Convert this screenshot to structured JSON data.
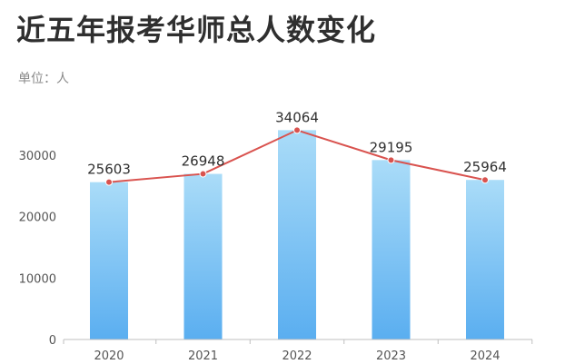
{
  "title": "近五年报考华师总人数变化",
  "unit_label": "单位：人",
  "chart_data": {
    "type": "bar",
    "title": "近五年报考华师总人数变化",
    "ylabel": "单位：人",
    "categories": [
      "2020",
      "2021",
      "2022",
      "2023",
      "2024"
    ],
    "series": [
      {
        "type": "bar",
        "values": [
          25603,
          26948,
          34064,
          29195,
          25964
        ]
      },
      {
        "type": "line",
        "values": [
          25603,
          26948,
          34064,
          29195,
          25964
        ]
      }
    ],
    "data_labels": [
      "25603",
      "26948",
      "34064",
      "29195",
      "25964"
    ],
    "yticks": [
      0,
      10000,
      20000,
      30000
    ],
    "ytick_labels": [
      "0",
      "10000",
      "20000",
      "30000"
    ],
    "ylim": [
      0,
      35000
    ],
    "grid": false,
    "colors": {
      "bar_top": "#aadcf8",
      "bar_bottom": "#5aaef0",
      "line": "#d9534f",
      "marker": "#d9534f"
    }
  }
}
